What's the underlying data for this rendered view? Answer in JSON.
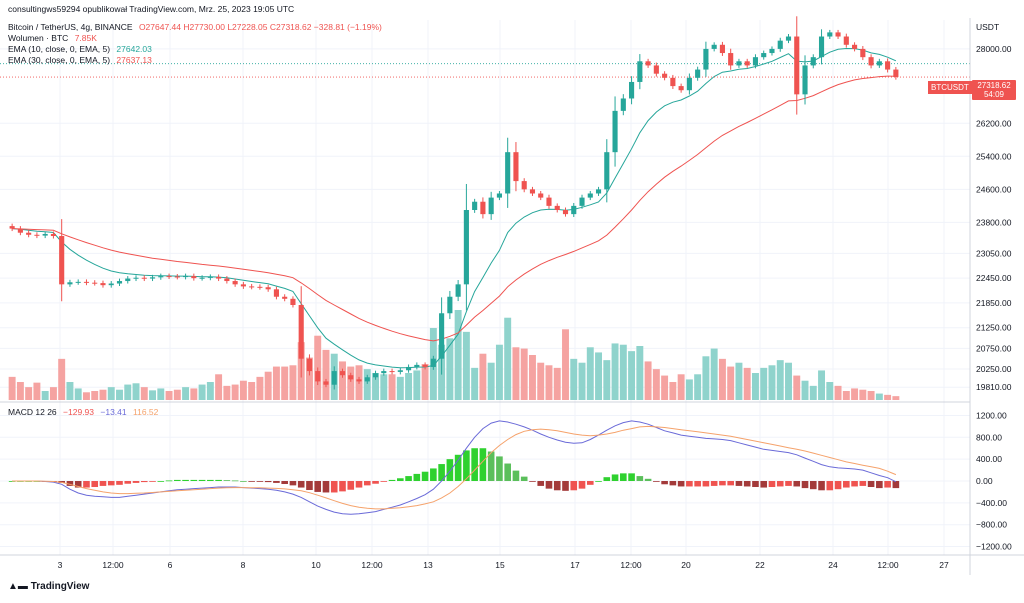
{
  "header": {
    "published": "consultingws59294 opublikował TradingView.com, Mrz. 25, 2023 19:05 UTC"
  },
  "legend": {
    "symbol": "Bitcoin / TetherUS, 4g, BINANCE",
    "ohlc": "O27647.44 H27730.00 L27228.05 C27318.62 −328.81 (−1.19%)",
    "volume_label": "Wolumen · BTC",
    "volume_value": "7.85K",
    "ema10_label": "EMA (10, close, 0, EMA, 5)",
    "ema10_value": "27642.03",
    "ema30_label": "EMA (30, close, 0, EMA, 5)",
    "ema30_value": "27637.13",
    "macd_label": "MACD 12 26",
    "macd_hist": "−129.93",
    "macd_line": "−13.41",
    "macd_signal": "116.52"
  },
  "price_axis": {
    "currency": "USDT",
    "symbol_tag": "BTCUSDT",
    "last_price": "27318.62",
    "countdown": "54:09"
  },
  "branding": {
    "logo_text": "TradingView"
  },
  "colors": {
    "up": "#26a69a",
    "down": "#ef5350",
    "vol_up": "#8fd3cc",
    "vol_down": "#f5a3a1",
    "ema10": "#26a69a",
    "ema30": "#ef5350",
    "macd_line": "#6a6ad8",
    "signal_line": "#f5a26b",
    "hist_up_strong": "#2fd12f",
    "hist_up_weak": "#5bbf5b",
    "hist_down_strong": "#ef5350",
    "hist_down_weak": "#a33a3a",
    "grid": "#f0f3fa",
    "axis_text": "#131722"
  },
  "chart_data": [
    {
      "type": "line",
      "title": "Bitcoin / TetherUS, 4g, BINANCE",
      "ylabel": "USDT",
      "ylim": [
        19500,
        28700
      ],
      "x_ticks": [
        "3",
        "12:00",
        "6",
        "8",
        "10",
        "12:00",
        "13",
        "15",
        "17",
        "12:00",
        "20",
        "22",
        "24",
        "12:00",
        "27"
      ],
      "y_ticks": [
        28000,
        26200,
        25400,
        24600,
        23800,
        23050,
        22450,
        21850,
        21250,
        20750,
        20250,
        19810
      ],
      "close": [
        23650,
        23550,
        23500,
        23480,
        23520,
        23470,
        22300,
        22350,
        22360,
        22340,
        22330,
        22280,
        22320,
        22380,
        22440,
        22460,
        22440,
        22470,
        22500,
        22490,
        22480,
        22500,
        22450,
        22460,
        22480,
        22440,
        22380,
        22300,
        22250,
        22240,
        22230,
        22180,
        22000,
        21950,
        21800,
        20500,
        20200,
        19950,
        19870,
        20200,
        20100,
        20000,
        19950,
        20050,
        20150,
        20200,
        20180,
        20220,
        20300,
        20350,
        20300,
        20500,
        21600,
        22000,
        22300,
        24100,
        24300,
        24000,
        24400,
        24500,
        25500,
        24800,
        24600,
        24500,
        24400,
        24200,
        24100,
        24000,
        24200,
        24400,
        24500,
        24600,
        25500,
        26500,
        26800,
        27200,
        27700,
        27600,
        27400,
        27300,
        27100,
        27000,
        27300,
        27500,
        28000,
        28100,
        27900,
        27600,
        27700,
        27600,
        27800,
        27900,
        28000,
        28200,
        28300,
        26900,
        27600,
        27800,
        28300,
        28400,
        28300,
        28100,
        28000,
        27800,
        27600,
        27700,
        27500,
        27318.62
      ],
      "series": [
        {
          "name": "EMA 10",
          "source": "close",
          "period": 10
        },
        {
          "name": "EMA 30",
          "source": "close",
          "period": 30
        }
      ],
      "volume": [
        36,
        28,
        20,
        27,
        14,
        20,
        64,
        28,
        18,
        12,
        14,
        16,
        20,
        16,
        24,
        26,
        20,
        15,
        18,
        14,
        16,
        20,
        18,
        24,
        28,
        40,
        22,
        24,
        30,
        28,
        36,
        44,
        52,
        52,
        54,
        90,
        66,
        100,
        78,
        72,
        60,
        52,
        54,
        48,
        42,
        40,
        40,
        36,
        42,
        46,
        56,
        112,
        86,
        96,
        140,
        106,
        50,
        72,
        58,
        86,
        128,
        82,
        80,
        70,
        58,
        54,
        50,
        110,
        64,
        58,
        82,
        74,
        62,
        88,
        86,
        76,
        84,
        60,
        48,
        38,
        28,
        40,
        32,
        40,
        68,
        80,
        64,
        52,
        58,
        50,
        42,
        50,
        54,
        62,
        58,
        38,
        30,
        22,
        46,
        28,
        22,
        14,
        18,
        16,
        14,
        10,
        8,
        6
      ]
    },
    {
      "type": "line",
      "title": "MACD 12 26",
      "ylim": [
        -1300,
        1300
      ],
      "y_ticks": [
        1200,
        800,
        400,
        0,
        -400,
        -800,
        -1200
      ],
      "series": [
        {
          "name": "MACD",
          "values": [
            0,
            0,
            0,
            0,
            -10,
            -20,
            -60,
            -150,
            -220,
            -260,
            -280,
            -290,
            -300,
            -300,
            -280,
            -260,
            -240,
            -220,
            -200,
            -180,
            -160,
            -150,
            -140,
            -130,
            -120,
            -110,
            -110,
            -110,
            -120,
            -130,
            -140,
            -150,
            -170,
            -200,
            -240,
            -300,
            -380,
            -460,
            -520,
            -570,
            -600,
            -610,
            -600,
            -580,
            -560,
            -520,
            -480,
            -440,
            -380,
            -320,
            -250,
            -150,
            0,
            180,
            380,
            600,
            800,
            960,
            1060,
            1100,
            1080,
            1040,
            990,
            930,
            860,
            800,
            750,
            710,
            690,
            700,
            760,
            840,
            930,
            1010,
            1070,
            1100,
            1080,
            1040,
            980,
            920,
            880,
            840,
            820,
            800,
            780,
            770,
            760,
            740,
            700,
            660,
            620,
            580,
            560,
            540,
            520,
            480,
            420,
            360,
            300,
            260,
            240,
            230,
            220,
            200,
            150,
            100,
            60,
            -13
          ]
        },
        {
          "name": "Signal",
          "values": [
            0,
            0,
            0,
            0,
            -5,
            -10,
            -25,
            -60,
            -100,
            -140,
            -170,
            -200,
            -220,
            -230,
            -230,
            -225,
            -220,
            -210,
            -200,
            -190,
            -180,
            -170,
            -160,
            -150,
            -140,
            -130,
            -125,
            -120,
            -120,
            -122,
            -125,
            -130,
            -135,
            -145,
            -160,
            -180,
            -215,
            -260,
            -310,
            -360,
            -410,
            -450,
            -480,
            -500,
            -510,
            -510,
            -500,
            -490,
            -470,
            -450,
            -420,
            -380,
            -310,
            -220,
            -100,
            40,
            200,
            360,
            520,
            650,
            760,
            850,
            910,
            940,
            950,
            940,
            920,
            890,
            860,
            840,
            830,
            840,
            860,
            890,
            930,
            960,
            990,
            1000,
            990,
            980,
            960,
            940,
            920,
            900,
            880,
            860,
            840,
            820,
            790,
            760,
            730,
            700,
            670,
            640,
            610,
            580,
            550,
            510,
            470,
            430,
            390,
            350,
            320,
            290,
            260,
            230,
            180,
            117
          ]
        }
      ],
      "histogram": [
        0,
        0,
        0,
        0,
        -5,
        -10,
        -35,
        -90,
        -120,
        -120,
        -110,
        -90,
        -80,
        -70,
        -50,
        -35,
        -20,
        -10,
        0,
        10,
        20,
        20,
        20,
        20,
        20,
        20,
        15,
        10,
        0,
        -8,
        -15,
        -20,
        -35,
        -55,
        -80,
        -120,
        -165,
        -200,
        -210,
        -210,
        -190,
        -160,
        -120,
        -80,
        -50,
        -10,
        20,
        50,
        90,
        130,
        170,
        230,
        310,
        400,
        480,
        560,
        600,
        600,
        540,
        450,
        320,
        190,
        80,
        -10,
        -90,
        -140,
        -170,
        -180,
        -170,
        -140,
        -70,
        0,
        70,
        120,
        140,
        140,
        90,
        40,
        -10,
        -60,
        -80,
        -100,
        -100,
        -100,
        -100,
        -90,
        -80,
        -80,
        -90,
        -100,
        -110,
        -120,
        -110,
        -100,
        -90,
        -100,
        -130,
        -150,
        -170,
        -170,
        -150,
        -120,
        -100,
        -90,
        -110,
        -130,
        -120,
        -130
      ]
    }
  ]
}
